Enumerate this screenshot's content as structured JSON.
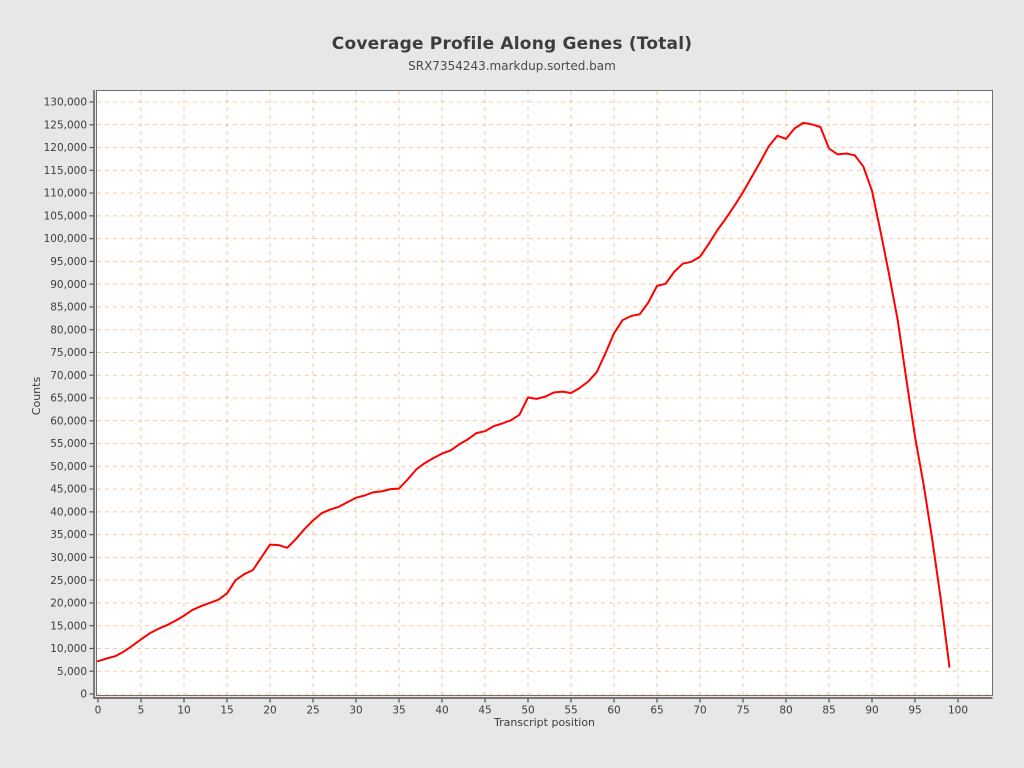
{
  "header": {
    "title": "Coverage Profile Along Genes (Total)",
    "subtitle": "SRX7354243.markdup.sorted.bam"
  },
  "chart_data": {
    "type": "line",
    "title": "Coverage Profile Along Genes (Total)",
    "subtitle": "SRX7354243.markdup.sorted.bam",
    "xlabel": "Transcript position",
    "ylabel": "Counts",
    "xlim": [
      0,
      100
    ],
    "ylim": [
      0,
      130000
    ],
    "grid": "dashed",
    "legend": "none",
    "colors": {
      "line": "#ff0000",
      "grid": "#f5c9a2",
      "plot_background": "#ffffff",
      "page_background": "#e7e7e7",
      "axis": "#525252",
      "frame": "#6e6e6e",
      "text": "#3d3d3d"
    },
    "x_ticks": [
      0,
      5,
      10,
      15,
      20,
      25,
      30,
      35,
      40,
      45,
      50,
      55,
      60,
      65,
      70,
      75,
      80,
      85,
      90,
      95,
      100
    ],
    "y_ticks": [
      0,
      5000,
      10000,
      15000,
      20000,
      25000,
      30000,
      35000,
      40000,
      45000,
      50000,
      55000,
      60000,
      65000,
      70000,
      75000,
      80000,
      85000,
      90000,
      95000,
      100000,
      105000,
      110000,
      115000,
      120000,
      125000,
      130000
    ],
    "x_is_transcript_position_index": true,
    "x": [
      0,
      1,
      2,
      3,
      4,
      5,
      6,
      7,
      8,
      9,
      10,
      11,
      12,
      13,
      14,
      15,
      16,
      17,
      18,
      19,
      20,
      21,
      22,
      23,
      24,
      25,
      26,
      27,
      28,
      29,
      30,
      31,
      32,
      33,
      34,
      35,
      36,
      37,
      38,
      39,
      40,
      41,
      42,
      43,
      44,
      45,
      46,
      47,
      48,
      49,
      50,
      51,
      52,
      53,
      54,
      55,
      56,
      57,
      58,
      59,
      60,
      61,
      62,
      63,
      64,
      65,
      66,
      67,
      68,
      69,
      70,
      71,
      72,
      73,
      74,
      75,
      76,
      77,
      78,
      79,
      80,
      81,
      82,
      83,
      84,
      85,
      86,
      87,
      88,
      89,
      90,
      91,
      92,
      93,
      94,
      95,
      96,
      97,
      98,
      99
    ],
    "values": [
      7200,
      7800,
      8300,
      9300,
      10600,
      12000,
      13300,
      14300,
      15100,
      16100,
      17200,
      18500,
      19300,
      20000,
      20700,
      22100,
      25000,
      26300,
      27200,
      30000,
      32800,
      32700,
      32100,
      34000,
      36200,
      38100,
      39700,
      40500,
      41100,
      42100,
      43100,
      43600,
      44300,
      44500,
      45000,
      45100,
      47100,
      49300,
      50700,
      51800,
      52800,
      53500,
      54800,
      55900,
      57300,
      57700,
      58800,
      59400,
      60100,
      61300,
      65100,
      64800,
      65300,
      66200,
      66400,
      66100,
      67200,
      68600,
      70700,
      74800,
      79200,
      82100,
      83000,
      83400,
      86000,
      89600,
      90100,
      92700,
      94500,
      94900,
      96000,
      98800,
      101800,
      104400,
      107200,
      110200,
      113500,
      116800,
      120300,
      122600,
      121900,
      124200,
      125400,
      125100,
      124500,
      119800,
      118500,
      118700,
      118300,
      115800,
      110500,
      101500,
      92000,
      82000,
      69000,
      56500,
      46000,
      34000,
      20800,
      6000
    ]
  }
}
